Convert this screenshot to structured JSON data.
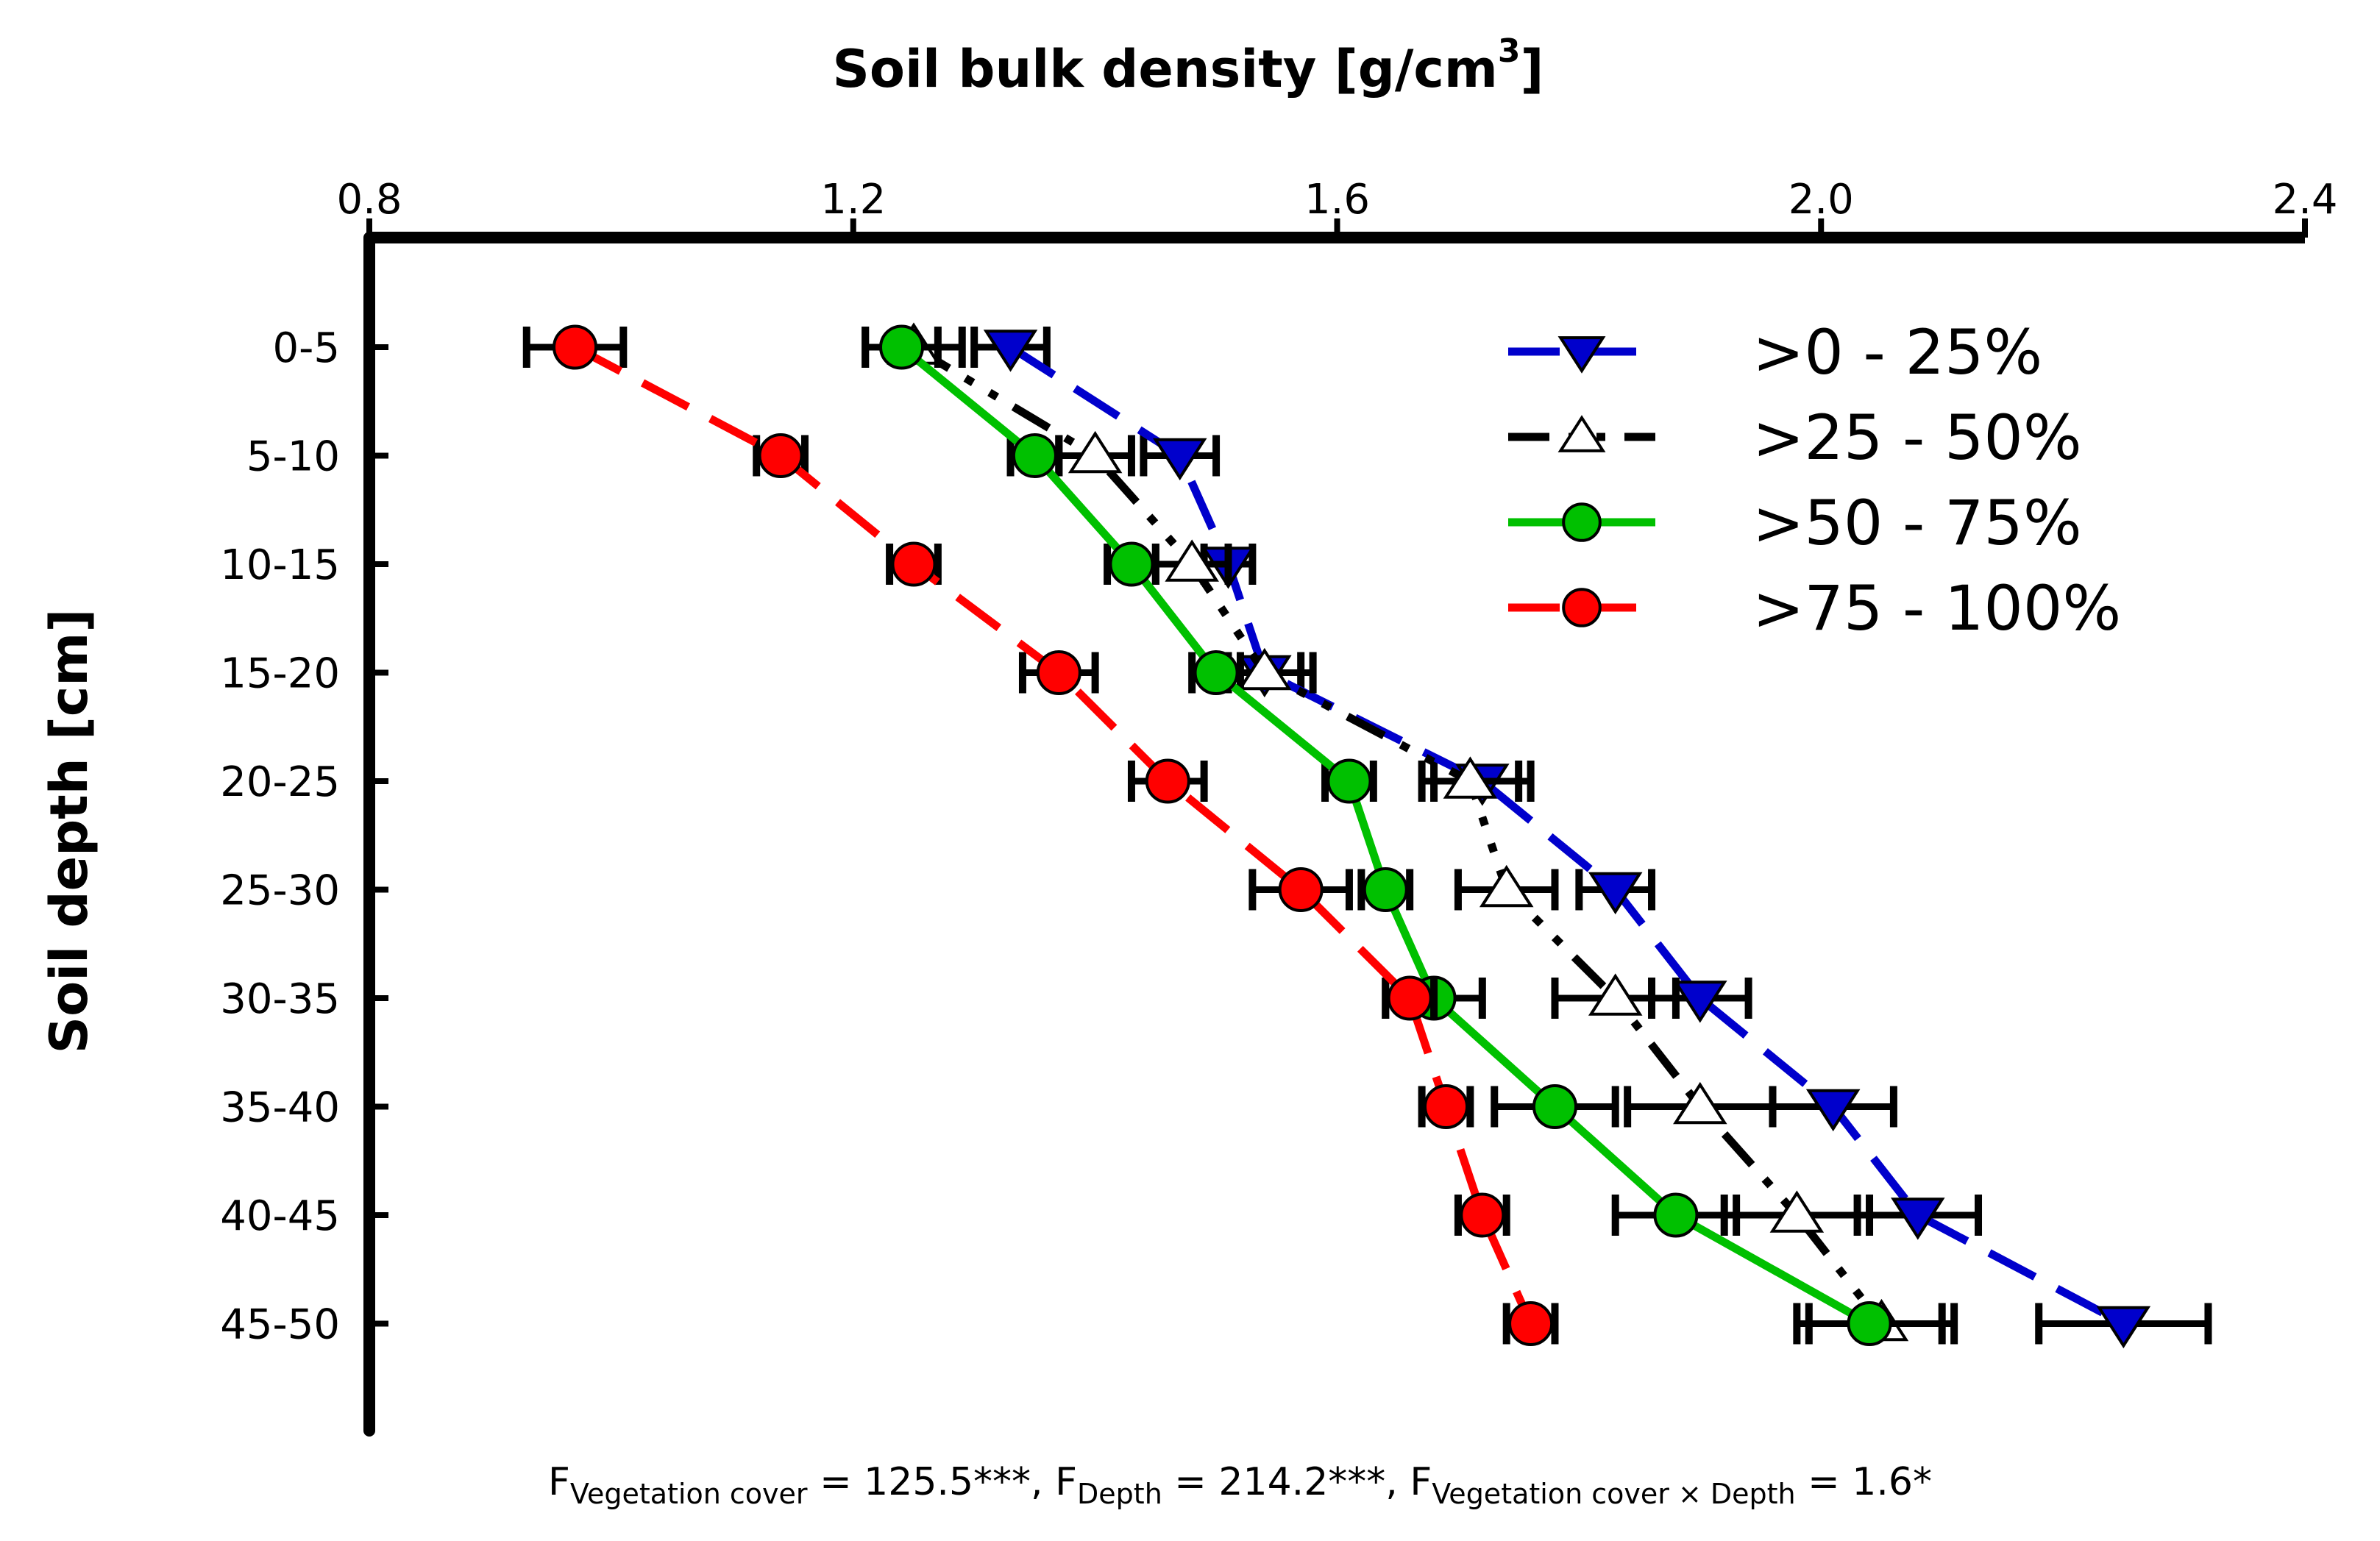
{
  "chart_data": {
    "type": "line",
    "xlabel": "Soil bulk density [g/cm",
    "xlabel_sup": "3",
    "xlabel_close": "]",
    "ylabel": "Soil depth [cm]",
    "x_axis_position": "top",
    "xlim": [
      0.8,
      2.4
    ],
    "x_ticks": [
      "0.8",
      "1.2",
      "1.6",
      "2.0",
      "2.4"
    ],
    "x_tick_values": [
      0.8,
      1.2,
      1.6,
      2.0,
      2.4
    ],
    "categories": [
      "0-5",
      "5-10",
      "10-15",
      "15-20",
      "20-25",
      "25-30",
      "30-35",
      "35-40",
      "40-45",
      "45-50"
    ],
    "legend_position": "top-right",
    "grid": false,
    "series": [
      {
        "name": ">0 - 25%",
        "color": "#0000cc",
        "marker": "triangle-down",
        "marker_fill": "#0000cc",
        "line_style": "dashed",
        "values": [
          1.33,
          1.47,
          1.51,
          1.54,
          1.72,
          1.83,
          1.9,
          2.01,
          2.08,
          2.25
        ],
        "errors": [
          0.03,
          0.03,
          0.02,
          0.03,
          0.04,
          0.03,
          0.04,
          0.05,
          0.05,
          0.07
        ]
      },
      {
        "name": ">25 - 50%",
        "color": "#000000",
        "marker": "triangle-up",
        "marker_fill": "#ffffff",
        "line_style": "dash-dot-dot",
        "values": [
          1.25,
          1.4,
          1.48,
          1.54,
          1.71,
          1.74,
          1.83,
          1.9,
          1.98,
          2.05
        ],
        "errors": [
          0.04,
          0.03,
          0.03,
          0.04,
          0.04,
          0.04,
          0.05,
          0.06,
          0.06,
          0.06
        ]
      },
      {
        "name": ">50 - 75%",
        "color": "#00c000",
        "marker": "circle",
        "marker_fill": "#00c000",
        "line_style": "solid",
        "values": [
          1.24,
          1.35,
          1.43,
          1.5,
          1.61,
          1.64,
          1.68,
          1.78,
          1.88,
          2.04
        ],
        "errors": [
          0.03,
          0.02,
          0.02,
          0.02,
          0.02,
          0.02,
          0.04,
          0.05,
          0.05,
          0.06
        ]
      },
      {
        "name": ">75 - 100%",
        "color": "#ff0000",
        "marker": "circle",
        "marker_fill": "#ff0000",
        "line_style": "dashed",
        "values": [
          0.97,
          1.14,
          1.25,
          1.37,
          1.46,
          1.57,
          1.66,
          1.69,
          1.72,
          1.76
        ],
        "errors": [
          0.04,
          0.02,
          0.02,
          0.03,
          0.03,
          0.04,
          0.02,
          0.02,
          0.02,
          0.02
        ]
      }
    ],
    "annotation": {
      "F1": "F",
      "F1_sub": "Vegetation cover",
      "F1_val": " = 125.5***, ",
      "F2": "F",
      "F2_sub": "Depth",
      "F2_val": " = 214.2***, ",
      "F3": "F",
      "F3_sub": "Vegetation cover × Depth",
      "F3_val": " = 1.6*"
    }
  }
}
